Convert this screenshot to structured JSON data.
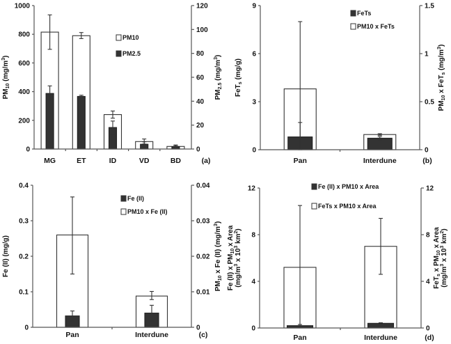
{
  "chart_data": [
    {
      "panel_label": "(a)",
      "type": "bar",
      "categories": [
        "MG",
        "ET",
        "ID",
        "VD",
        "BD"
      ],
      "left_axis": {
        "label": [
          {
            "t": "PM"
          },
          {
            "t": "10",
            "sub": true
          },
          {
            "t": " (mg/m"
          },
          {
            "t": "3",
            "sup": true
          },
          {
            "t": ")"
          }
        ],
        "ylim": [
          0,
          1000
        ],
        "ticks": [
          0,
          200,
          400,
          600,
          800,
          1000
        ]
      },
      "right_axis": {
        "label": [
          {
            "t": "PM"
          },
          {
            "t": "2.5",
            "sub": true
          },
          {
            "t": " (mg/m"
          },
          {
            "t": "3",
            "sup": true
          },
          {
            "t": ")"
          }
        ],
        "ylim": [
          0,
          120
        ],
        "ticks": [
          0,
          20,
          40,
          60,
          80,
          100,
          120
        ]
      },
      "series": [
        {
          "name": "PM10",
          "fill": "#ffffff",
          "axis": "left",
          "values": [
            815,
            790,
            240,
            52,
            18
          ],
          "err_low": [
            695,
            770,
            215,
            35,
            10
          ],
          "err_high": [
            935,
            812,
            265,
            70,
            28
          ]
        },
        {
          "name": "PM2.5",
          "fill": "#333333",
          "axis": "right",
          "values": [
            46.5,
            44,
            18,
            4,
            2
          ],
          "err_low": [
            40,
            43,
            12,
            2,
            1
          ],
          "err_high": [
            52.8,
            45,
            23.4,
            6,
            3
          ]
        }
      ],
      "legend_order": [
        0,
        1
      ]
    },
    {
      "panel_label": "(b)",
      "type": "bar",
      "categories": [
        "Pan",
        "Interdune"
      ],
      "left_axis": {
        "label": [
          {
            "t": "FeT"
          },
          {
            "t": "s",
            "sub": true
          },
          {
            "t": " (mg/g)"
          }
        ],
        "ylim": [
          0,
          9
        ],
        "ticks": [
          0,
          3,
          6,
          9
        ]
      },
      "right_axis": {
        "label": [
          {
            "t": "PM"
          },
          {
            "t": "10",
            "sub": true
          },
          {
            "t": " x FeT"
          },
          {
            "t": "s",
            "sub": true
          },
          {
            "t": " (mg/m"
          },
          {
            "t": "3",
            "sup": true
          },
          {
            "t": ")"
          }
        ],
        "ylim": [
          0,
          1.5
        ],
        "ticks": [
          0,
          0.5,
          1,
          1.5
        ]
      },
      "series": [
        {
          "name": "PM10 x FeTs",
          "fill": "#ffffff",
          "axis": "right",
          "values": [
            0.633,
            0.158
          ],
          "err_low": [
            0,
            0.15
          ],
          "err_high": [
            1.333,
            0.167
          ]
        },
        {
          "name": "FeTs",
          "fill": "#333333",
          "axis": "left",
          "values": [
            0.8,
            0.72
          ],
          "err_low": [
            0,
            0.62
          ],
          "err_high": [
            1.7,
            0.82
          ]
        }
      ],
      "legend_order": [
        1,
        0
      ]
    },
    {
      "panel_label": "(c)",
      "type": "bar",
      "categories": [
        "Pan",
        "Interdune"
      ],
      "left_axis": {
        "label": [
          {
            "t": "Fe (II) (mg/g)"
          }
        ],
        "ylim": [
          0,
          0.4
        ],
        "ticks": [
          0,
          0.1,
          0.2,
          0.3,
          0.4
        ]
      },
      "right_axis": {
        "label": [
          {
            "t": "PM"
          },
          {
            "t": "10",
            "sub": true
          },
          {
            "t": " x Fe (II) (mg/m"
          },
          {
            "t": "3",
            "sup": true
          },
          {
            "t": ")"
          }
        ],
        "ylim": [
          0,
          0.04
        ],
        "ticks": [
          0,
          0.01,
          0.02,
          0.03,
          0.04
        ]
      },
      "series": [
        {
          "name": "PM10 x Fe (II)",
          "fill": "#ffffff",
          "axis": "right",
          "values": [
            0.026,
            0.0088
          ],
          "err_low": [
            0.015,
            0.0078
          ],
          "err_high": [
            0.0367,
            0.0101
          ]
        },
        {
          "name": "Fe (II)",
          "fill": "#333333",
          "axis": "left",
          "values": [
            0.032,
            0.04
          ],
          "err_low": [
            0.018,
            0.018
          ],
          "err_high": [
            0.046,
            0.062
          ]
        }
      ],
      "legend_order": [
        1,
        0
      ]
    },
    {
      "panel_label": "(d)",
      "type": "bar",
      "categories": [
        "Pan",
        "Interdune"
      ],
      "left_axis": {
        "label": [
          {
            "t": "Fe (II) x PM"
          },
          {
            "t": "10",
            "sub": true
          },
          {
            "t": " x Area"
          }
        ],
        "label2": [
          {
            "t": "(mg/m"
          },
          {
            "t": "3",
            "sup": true
          },
          {
            "t": " x 10"
          },
          {
            "t": "3",
            "sup": true
          },
          {
            "t": " km"
          },
          {
            "t": "2",
            "sup": true
          },
          {
            "t": ")"
          }
        ],
        "ylim": [
          0,
          12
        ],
        "ticks": [
          0,
          4,
          8,
          12
        ]
      },
      "right_axis": {
        "label": [
          {
            "t": "FeT"
          },
          {
            "t": "s",
            "sub": true
          },
          {
            "t": " x PM"
          },
          {
            "t": "10",
            "sub": true
          },
          {
            "t": " x Area"
          }
        ],
        "label2": [
          {
            "t": "(mg/m"
          },
          {
            "t": "3",
            "sup": true
          },
          {
            "t": " x 10"
          },
          {
            "t": "3",
            "sup": true
          },
          {
            "t": " km"
          },
          {
            "t": "2",
            "sup": true
          },
          {
            "t": ")"
          }
        ],
        "ylim": [
          0,
          12
        ],
        "ticks": [
          0,
          4,
          8,
          12
        ]
      },
      "series": [
        {
          "name": "FeTs x PM10 x Area",
          "fill": "#ffffff",
          "axis": "right",
          "values": [
            5.2,
            7.0
          ],
          "err_low": [
            0.2,
            4.6
          ],
          "err_high": [
            10.5,
            9.4
          ]
        },
        {
          "name": "Fe (II) x PM10 x Area",
          "fill": "#333333",
          "axis": "left",
          "values": [
            0.2,
            0.4
          ],
          "err_low": [
            0.1,
            0.35
          ],
          "err_high": [
            0.3,
            0.45
          ]
        }
      ],
      "legend_order": [
        1,
        0
      ]
    }
  ]
}
